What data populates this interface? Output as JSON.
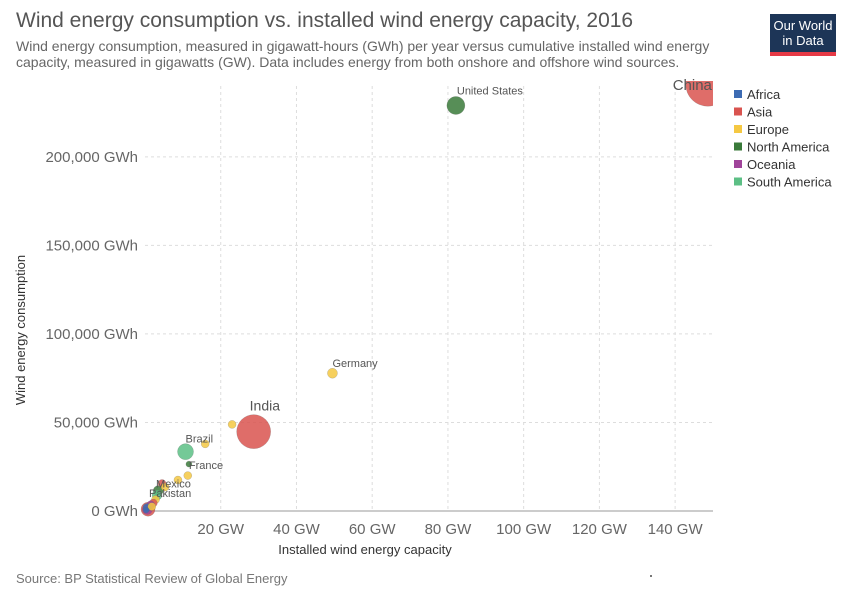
{
  "header": {
    "title": "Wind energy consumption vs. installed wind energy capacity, 2016",
    "subtitle": "Wind energy consumption, measured in gigawatt-hours (GWh) per year versus cumulative installed wind energy capacity, measured in gigawatts (GW). Data includes energy from both onshore and offshore wind sources.",
    "logo_line1": "Our World",
    "logo_line2": "in Data"
  },
  "footer": {
    "source": "Source: BP Statistical Review of Global Energy"
  },
  "colors": {
    "Africa": "#3d6bb3",
    "Asia": "#d9534f",
    "Europe": "#f5c842",
    "North America": "#3a7a3a",
    "Oceania": "#a0449a",
    "South America": "#5cbf85"
  },
  "chart_data": {
    "type": "scatter",
    "title": "Wind energy consumption vs. installed wind energy capacity, 2016",
    "xlabel": "Installed wind energy capacity",
    "ylabel": "Wind energy consumption",
    "xlim": [
      0,
      150
    ],
    "ylim": [
      0,
      240000
    ],
    "x_ticks": [
      20,
      40,
      60,
      80,
      100,
      120,
      140
    ],
    "x_tick_labels": [
      "20 GW",
      "40 GW",
      "60 GW",
      "80 GW",
      "100 GW",
      "120 GW",
      "140 GW"
    ],
    "y_ticks": [
      0,
      50000,
      100000,
      150000,
      200000
    ],
    "y_tick_labels": [
      "0 GWh",
      "50,000 GWh",
      "100,000 GWh",
      "150,000 GWh",
      "200,000 GWh"
    ],
    "grid": true,
    "legend": {
      "position": "right",
      "entries": [
        "Africa",
        "Asia",
        "Europe",
        "North America",
        "Oceania",
        "South America"
      ]
    },
    "points": [
      {
        "label": "China",
        "region": "Asia",
        "x": 148.6,
        "y": 241000,
        "size": 22
      },
      {
        "label": "United States",
        "region": "North America",
        "x": 82.1,
        "y": 229000,
        "size": 9
      },
      {
        "label": "Germany",
        "region": "Europe",
        "x": 49.5,
        "y": 77800,
        "size": 5
      },
      {
        "label": "India",
        "region": "Asia",
        "x": 28.7,
        "y": 44800,
        "size": 17
      },
      {
        "label": "",
        "region": "Europe",
        "x": 23.0,
        "y": 48900,
        "size": 4
      },
      {
        "label": "",
        "region": "Europe",
        "x": 15.9,
        "y": 37900,
        "size": 4
      },
      {
        "label": "Brazil",
        "region": "South America",
        "x": 10.7,
        "y": 33500,
        "size": 8
      },
      {
        "label": "France",
        "region": "North America",
        "x": 11.6,
        "y": 26500,
        "size": 3
      },
      {
        "label": "",
        "region": "Europe",
        "x": 11.3,
        "y": 20000,
        "size": 4
      },
      {
        "label": "",
        "region": "Europe",
        "x": 8.7,
        "y": 17500,
        "size": 4
      },
      {
        "label": "Mexico",
        "region": "Asia",
        "x": 4.5,
        "y": 15500,
        "size": 4
      },
      {
        "label": "",
        "region": "Europe",
        "x": 5.3,
        "y": 13500,
        "size": 4
      },
      {
        "label": "",
        "region": "North America",
        "x": 3.5,
        "y": 11500,
        "size": 5
      },
      {
        "label": "",
        "region": "South America",
        "x": 3.2,
        "y": 9000,
        "size": 5
      },
      {
        "label": "",
        "region": "Europe",
        "x": 2.8,
        "y": 6500,
        "size": 4
      },
      {
        "label": "",
        "region": "Asia",
        "x": 2.2,
        "y": 4500,
        "size": 4
      },
      {
        "label": "",
        "region": "Oceania",
        "x": 1.5,
        "y": 3500,
        "size": 4
      },
      {
        "label": "",
        "region": "Africa",
        "x": 0.5,
        "y": 2000,
        "size": 4
      },
      {
        "label": "",
        "region": "Europe",
        "x": 1.8,
        "y": 2500,
        "size": 4
      },
      {
        "label": "Pakistan",
        "region": "Asia",
        "x": 0.8,
        "y": 1000,
        "size": 7
      },
      {
        "label": "",
        "region": "Oceania",
        "x": 0.6,
        "y": 800,
        "size": 5
      },
      {
        "label": "",
        "region": "Africa",
        "x": 0.3,
        "y": 500,
        "size": 3
      }
    ]
  }
}
